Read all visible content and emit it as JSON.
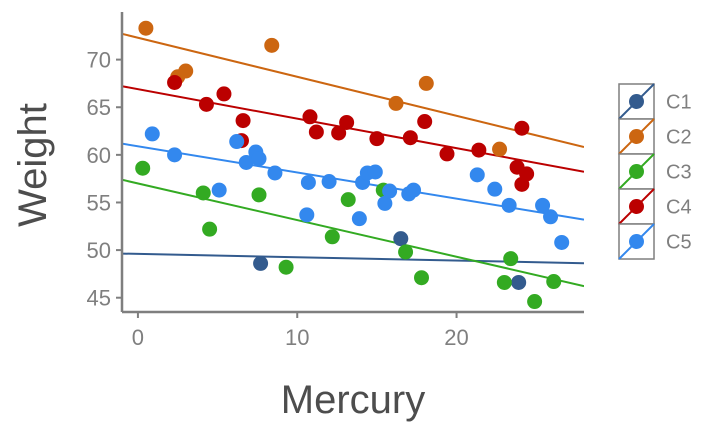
{
  "chart_data": {
    "type": "scatter",
    "xlabel": "Mercury",
    "ylabel": "Weight",
    "xlim": [
      -1,
      28
    ],
    "ylim": [
      43.5,
      75
    ],
    "xticks": [
      0,
      10,
      20
    ],
    "yticks": [
      45,
      50,
      55,
      60,
      65,
      70
    ],
    "grid": false,
    "legend_position": "right",
    "series": [
      {
        "name": "C1",
        "color": "#335b8e",
        "points": [
          [
            7.7,
            48.6
          ],
          [
            16.5,
            51.2
          ],
          [
            23.9,
            46.6
          ]
        ],
        "fit": {
          "intercept": 49.6,
          "slope": -0.035
        }
      },
      {
        "name": "C2",
        "color": "#cc6611",
        "points": [
          [
            0.5,
            73.3
          ],
          [
            2.5,
            68.2
          ],
          [
            3.0,
            68.8
          ],
          [
            8.4,
            71.5
          ],
          [
            16.2,
            65.4
          ],
          [
            18.1,
            67.5
          ],
          [
            22.7,
            60.6
          ]
        ],
        "fit": {
          "intercept": 72.3,
          "slope": -0.41
        }
      },
      {
        "name": "C3",
        "color": "#33aa22",
        "points": [
          [
            0.3,
            58.6
          ],
          [
            4.1,
            56.0
          ],
          [
            4.5,
            52.2
          ],
          [
            7.6,
            55.8
          ],
          [
            9.3,
            48.2
          ],
          [
            12.2,
            51.4
          ],
          [
            13.2,
            55.3
          ],
          [
            15.4,
            56.3
          ],
          [
            16.8,
            49.8
          ],
          [
            17.8,
            47.1
          ],
          [
            23.0,
            46.6
          ],
          [
            23.4,
            49.1
          ],
          [
            24.9,
            44.6
          ],
          [
            26.1,
            46.7
          ]
        ],
        "fit": {
          "intercept": 57.0,
          "slope": -0.385
        }
      },
      {
        "name": "C4",
        "color": "#bb0000",
        "points": [
          [
            2.3,
            67.6
          ],
          [
            4.3,
            65.3
          ],
          [
            5.4,
            66.4
          ],
          [
            6.5,
            61.5
          ],
          [
            6.6,
            63.6
          ],
          [
            10.8,
            64.0
          ],
          [
            11.2,
            62.4
          ],
          [
            12.6,
            62.3
          ],
          [
            13.1,
            63.4
          ],
          [
            15.0,
            61.7
          ],
          [
            17.1,
            61.8
          ],
          [
            18.0,
            63.5
          ],
          [
            19.4,
            60.1
          ],
          [
            21.4,
            60.5
          ],
          [
            23.8,
            58.7
          ],
          [
            24.1,
            62.8
          ],
          [
            24.1,
            56.9
          ],
          [
            24.4,
            58.0
          ]
        ],
        "fit": {
          "intercept": 66.9,
          "slope": -0.31
        }
      },
      {
        "name": "C5",
        "color": "#3388ee",
        "points": [
          [
            0.9,
            62.2
          ],
          [
            2.3,
            60.0
          ],
          [
            5.1,
            56.3
          ],
          [
            6.2,
            61.4
          ],
          [
            6.8,
            59.2
          ],
          [
            7.4,
            60.3
          ],
          [
            7.6,
            59.6
          ],
          [
            8.6,
            58.1
          ],
          [
            10.6,
            53.7
          ],
          [
            10.7,
            57.1
          ],
          [
            12.0,
            57.2
          ],
          [
            13.9,
            53.3
          ],
          [
            14.1,
            57.1
          ],
          [
            14.4,
            58.1
          ],
          [
            14.9,
            58.2
          ],
          [
            15.5,
            54.9
          ],
          [
            15.8,
            56.2
          ],
          [
            17.0,
            55.9
          ],
          [
            17.3,
            56.3
          ],
          [
            21.3,
            57.9
          ],
          [
            22.4,
            56.4
          ],
          [
            23.3,
            54.7
          ],
          [
            25.4,
            54.7
          ],
          [
            25.9,
            53.5
          ],
          [
            26.6,
            50.8
          ]
        ],
        "fit": {
          "intercept": 60.9,
          "slope": -0.275
        }
      }
    ]
  }
}
